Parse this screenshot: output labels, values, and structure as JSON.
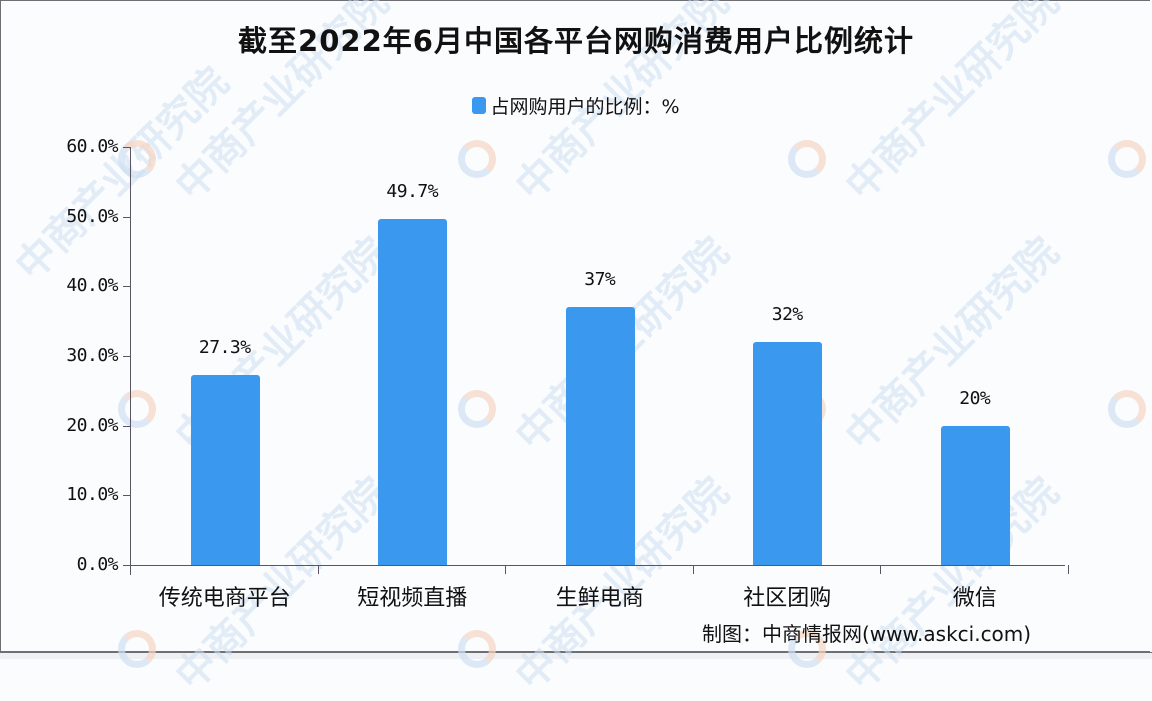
{
  "title": "截至2022年6月中国各平台网购消费用户比例统计",
  "legend": {
    "label": "占网购用户的比例：%",
    "color": "#3a98ee"
  },
  "y_ticks": [
    "60.0%",
    "50.0%",
    "40.0%",
    "30.0%",
    "20.0%",
    "10.0%",
    "0.0%"
  ],
  "bars": [
    {
      "category": "传统电商平台",
      "value": 27.3,
      "label": "27.3%"
    },
    {
      "category": "短视频直播",
      "value": 49.7,
      "label": "49.7%"
    },
    {
      "category": "生鲜电商",
      "value": 37,
      "label": "37%"
    },
    {
      "category": "社区团购",
      "value": 32,
      "label": "32%"
    },
    {
      "category": "微信",
      "value": 20,
      "label": "20%"
    }
  ],
  "source": "制图：中商情报网(www.askci.com)",
  "watermark": "中商产业研究院",
  "chart_data": {
    "type": "bar",
    "title": "截至2022年6月中国各平台网购消费用户比例统计",
    "categories": [
      "传统电商平台",
      "短视频直播",
      "生鲜电商",
      "社区团购",
      "微信"
    ],
    "series": [
      {
        "name": "占网购用户的比例：%",
        "values": [
          27.3,
          49.7,
          37,
          32,
          20
        ],
        "color": "#3a98ee"
      }
    ],
    "data_labels": [
      "27.3%",
      "49.7%",
      "37%",
      "32%",
      "20%"
    ],
    "xlabel": "",
    "ylabel": "",
    "ylim": [
      0,
      60
    ],
    "y_tick_labels": [
      "0.0%",
      "10.0%",
      "20.0%",
      "30.0%",
      "40.0%",
      "50.0%",
      "60.0%"
    ],
    "grid": false,
    "legend_position": "top",
    "source_note": "制图：中商情报网(www.askci.com)"
  }
}
